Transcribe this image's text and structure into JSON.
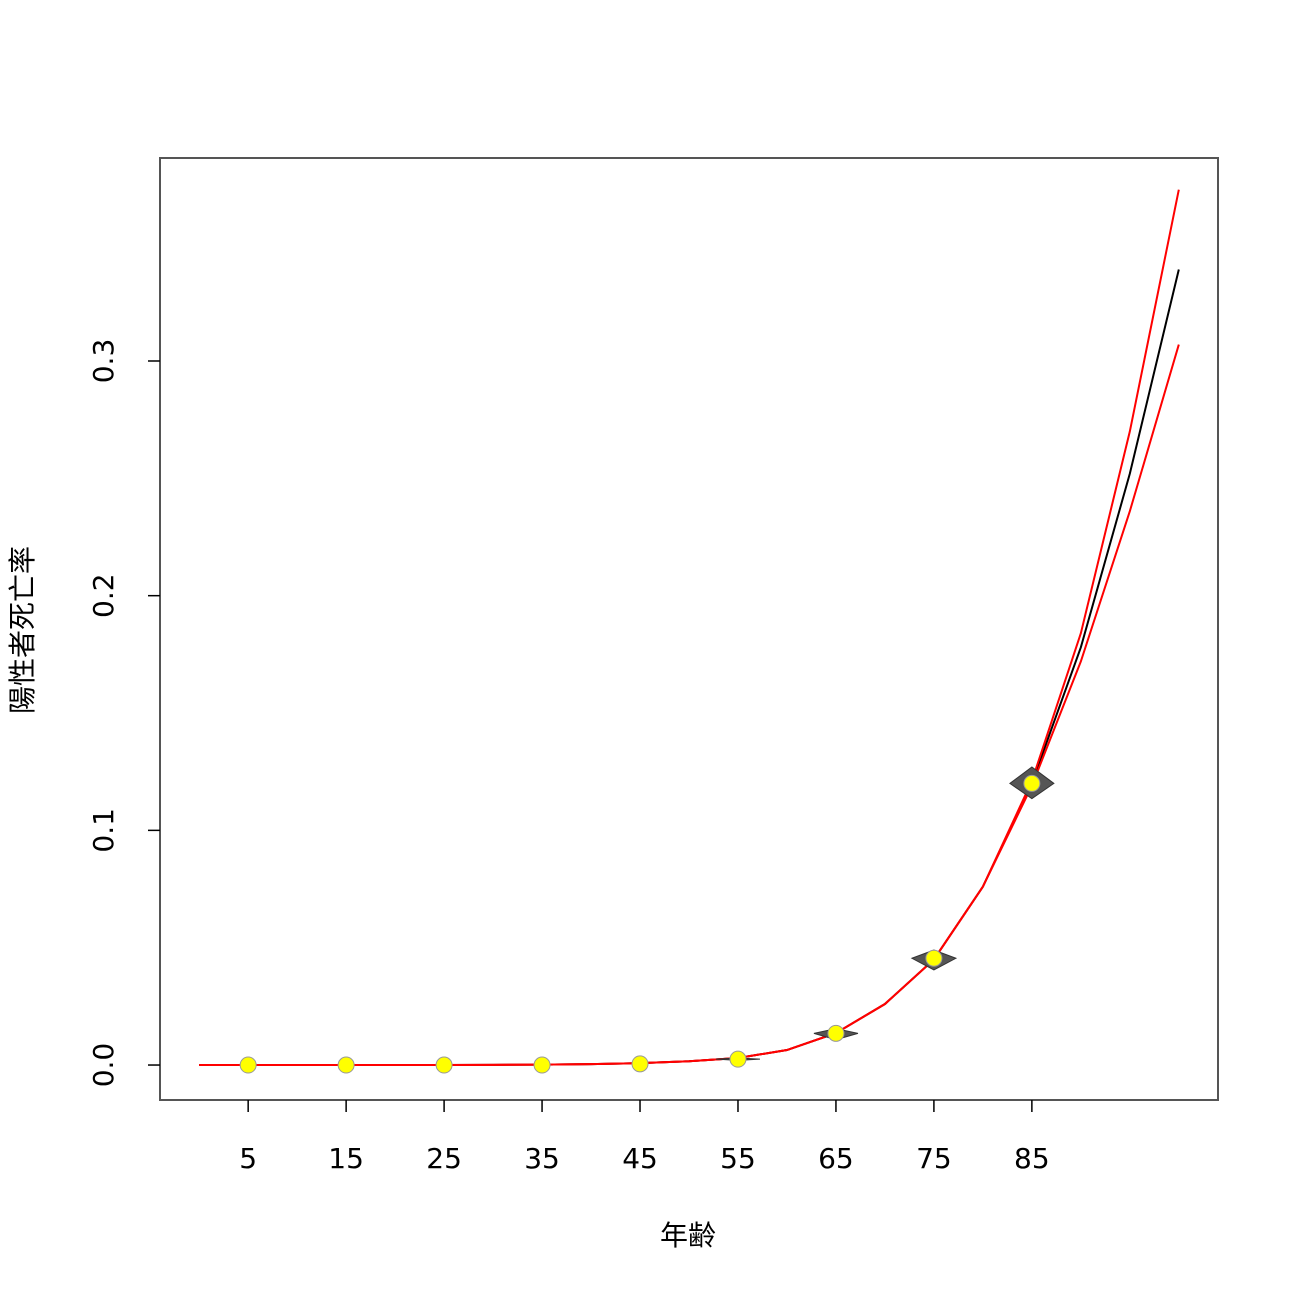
{
  "chart_data": {
    "type": "line",
    "xlabel": "年齢",
    "ylabel": "陽性者死亡率",
    "xlim": [
      -4,
      104
    ],
    "ylim": [
      -0.0149,
      0.3865
    ],
    "xticks": [
      5,
      15,
      25,
      35,
      45,
      55,
      65,
      75,
      85
    ],
    "yticks": [
      {
        "value": 0,
        "label": "0.0"
      },
      0.1,
      0.2,
      0.3
    ],
    "x": [
      0,
      5,
      10,
      15,
      20,
      25,
      30,
      35,
      40,
      45,
      50,
      55,
      60,
      65,
      70,
      75,
      80,
      85,
      90,
      95,
      100
    ],
    "series": [
      {
        "color": "#000000",
        "values": [
          1e-06,
          2e-06,
          4e-06,
          8e-06,
          2e-05,
          4e-05,
          8e-05,
          0.00018,
          0.0004,
          0.0008,
          0.0016,
          0.003,
          0.0064,
          0.0136,
          0.026,
          0.045,
          0.076,
          0.12,
          0.178,
          0.252,
          0.339
        ]
      },
      {
        "color": "#ff0000",
        "values": [
          1e-06,
          2e-06,
          4e-06,
          8e-06,
          2e-05,
          4e-05,
          8e-05,
          0.00018,
          0.0004,
          0.0008,
          0.0016,
          0.003,
          0.0064,
          0.0136,
          0.026,
          0.045,
          0.076,
          0.121,
          0.184,
          0.27,
          0.373
        ]
      },
      {
        "color": "#ff0000",
        "values": [
          1e-06,
          2e-06,
          4e-06,
          8e-06,
          2e-05,
          4e-05,
          8e-05,
          0.00018,
          0.0004,
          0.0008,
          0.0016,
          0.003,
          0.0064,
          0.0136,
          0.026,
          0.045,
          0.076,
          0.119,
          0.172,
          0.236,
          0.307
        ]
      }
    ],
    "points": {
      "x": [
        5,
        15,
        25,
        35,
        45,
        55,
        65,
        75,
        85
      ],
      "values": [
        0,
        0,
        0,
        0,
        0.0005,
        0.0025,
        0.0135,
        0.0455,
        0.12
      ],
      "ci_lower": [
        0,
        0,
        0,
        0,
        0.0003,
        0.002,
        0.0108,
        0.0405,
        0.1135
      ],
      "ci_upper": [
        0,
        0,
        0,
        0,
        0.0007,
        0.003,
        0.0155,
        0.049,
        0.127
      ],
      "color": "#ffff00",
      "ci_color": "#555555"
    }
  }
}
